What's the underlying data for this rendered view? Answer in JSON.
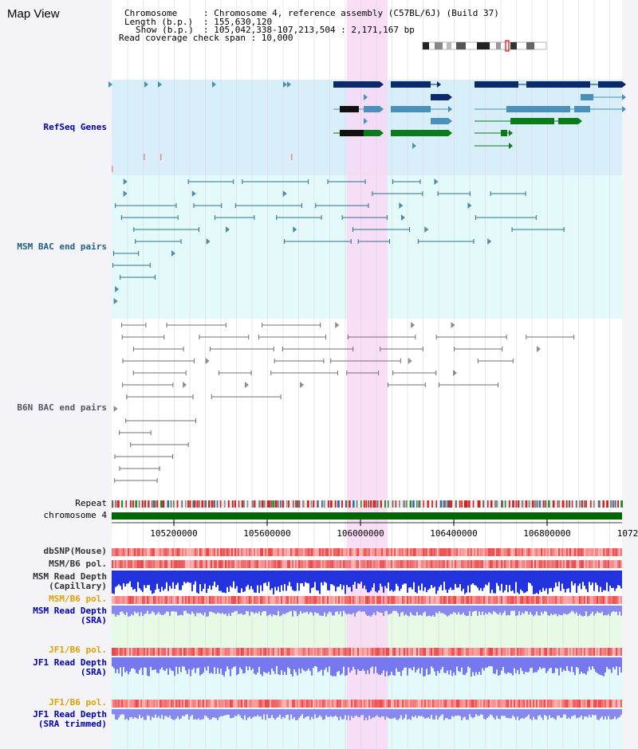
{
  "title": "Map View",
  "info": {
    "chromosome_key": "Chromosome",
    "chromosome_val": ": Chromosome 4, reference assembly (C57BL/6J) (Build 37)",
    "length_key": "Length (b.p.)",
    "length_val": ": 155,630,120",
    "show_key": "Show (b.p.)",
    "show_val": ": 105,042,338-107,213,504 : 2,171,167 bp",
    "coverage": "Read coverage check span : 10,000"
  },
  "tracks": {
    "refseq": "RefSeq Genes",
    "msm_bac": "MSM BAC end pairs",
    "b6n_bac": "B6N BAC end pairs",
    "repeat": "Repeat",
    "chromosome": "chromosome 4",
    "dbsnp": "dbSNP(Mouse)",
    "msm_b6_pol": "MSM/B6 pol.",
    "msm_read_depth_cap_1": "MSM Read Depth",
    "msm_read_depth_cap_2": "(Capillary)",
    "msm_b6_pol_2": "MSM/B6 pol.",
    "msm_read_depth_sra_1": "MSM Read Depth",
    "msm_read_depth_sra_2": "(SRA)",
    "jf1_b6_pol": "JF1/B6 pol.",
    "jf1_read_depth_1": "JF1 Read Depth",
    "jf1_read_depth_2": "(SRA)",
    "jf1_b6_pol_2": "JF1/B6 pol.",
    "jf1_read_depth_trim_1": "JF1 Read Depth",
    "jf1_read_depth_trim_2": "(SRA trimmed)"
  },
  "axis": {
    "ticks": [
      "105200000",
      "105600000",
      "106000000",
      "106400000",
      "106800000",
      "1072"
    ]
  },
  "colors": {
    "highlight": "#f8d8f4",
    "refseq_bg": "#d8eef8",
    "msm_bg": "#e4fafa",
    "chromosome_bar": "#006600",
    "navy_gene": "#0a2a6a",
    "steel_gene": "#4a90b8",
    "green_gene": "#0a7a1a",
    "bac_teal": "#2a7090",
    "bac_gray": "#707070"
  }
}
